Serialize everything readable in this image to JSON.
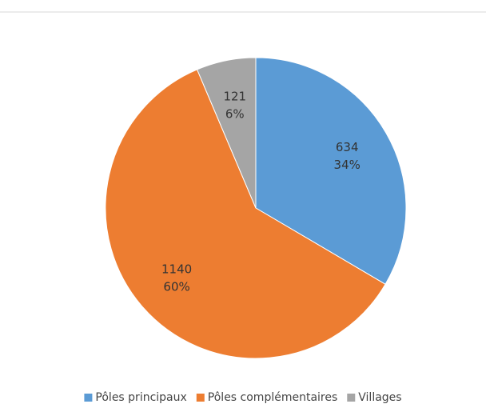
{
  "chart_data": {
    "type": "pie",
    "categories": [
      "Pôles principaux",
      "Pôles complémentaires",
      "Villages"
    ],
    "values": [
      634,
      1140,
      121
    ],
    "value_labels": [
      "634",
      "1140",
      "121"
    ],
    "percent_labels": [
      "34%",
      "60%",
      "6%"
    ],
    "colors": [
      "#5b9bd5",
      "#ed7d31",
      "#a5a5a5"
    ],
    "legend": "bottom"
  }
}
